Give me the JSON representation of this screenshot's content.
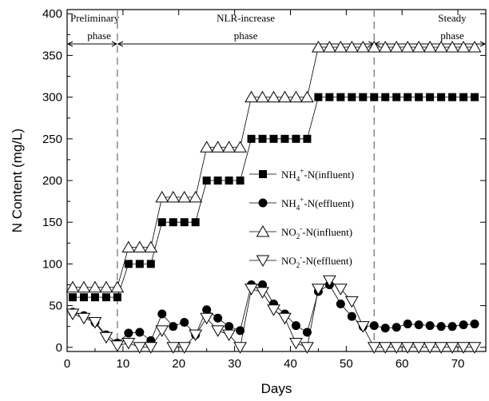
{
  "chart_data": {
    "type": "scatter",
    "title": "",
    "xlabel": "Days",
    "ylabel": "N Content (mg/L)",
    "xlim": [
      0,
      75
    ],
    "ylim": [
      -5,
      405
    ],
    "x_ticks": [
      0,
      10,
      20,
      30,
      40,
      50,
      60,
      70
    ],
    "y_ticks": [
      0,
      50,
      100,
      150,
      200,
      250,
      300,
      350,
      400
    ],
    "x_tick_labels": [
      "0",
      "10",
      "20",
      "30",
      "40",
      "50",
      "60",
      "70"
    ],
    "y_tick_labels": [
      "0",
      "50",
      "100",
      "150",
      "200",
      "250",
      "300",
      "350",
      "400"
    ],
    "phase_dividers_x": [
      9,
      55
    ],
    "phases": [
      {
        "line1": "Preliminary",
        "line2": "phase",
        "x_start": 0,
        "x_end": 9
      },
      {
        "line1": "NLR-increase",
        "line2": "phase",
        "x_start": 9,
        "x_end": 55
      },
      {
        "line1": "Steady",
        "line2": "phase",
        "x_start": 55,
        "x_end": 75
      }
    ],
    "legend_position": "center-right",
    "series": [
      {
        "name_main": "NH",
        "name_sub": "4",
        "name_sup": "+",
        "name_rest": "-N(influent)",
        "marker": "square",
        "x": [
          1,
          3,
          5,
          7,
          9,
          11,
          13,
          15,
          17,
          19,
          21,
          23,
          25,
          27,
          29,
          31,
          33,
          35,
          37,
          39,
          41,
          43,
          45,
          47,
          49,
          51,
          53,
          55,
          57,
          59,
          61,
          63,
          65,
          67,
          69,
          71,
          73
        ],
        "y": [
          60,
          60,
          60,
          60,
          60,
          100,
          100,
          100,
          150,
          150,
          150,
          150,
          200,
          200,
          200,
          200,
          250,
          250,
          250,
          250,
          250,
          250,
          300,
          300,
          300,
          300,
          300,
          300,
          300,
          300,
          300,
          300,
          300,
          300,
          300,
          300,
          300
        ]
      },
      {
        "name_main": "NH",
        "name_sub": "4",
        "name_sup": "+",
        "name_rest": "-N(effluent)",
        "marker": "circle",
        "x": [
          1,
          3,
          5,
          7,
          9,
          11,
          13,
          15,
          17,
          19,
          21,
          23,
          25,
          27,
          29,
          31,
          33,
          35,
          37,
          39,
          41,
          43,
          45,
          47,
          49,
          51,
          53,
          55,
          57,
          59,
          61,
          63,
          65,
          67,
          69,
          71,
          73
        ],
        "y": [
          42,
          38,
          30,
          15,
          5,
          17,
          18,
          8,
          40,
          25,
          30,
          15,
          45,
          35,
          25,
          20,
          75,
          75,
          52,
          40,
          26,
          18,
          67,
          75,
          52,
          37,
          25,
          26,
          23,
          24,
          28,
          27,
          26,
          25,
          25,
          27,
          28
        ]
      },
      {
        "name_main": "NO",
        "name_sub": "2",
        "name_sup": "-",
        "name_rest": "-N(influent)",
        "marker": "triangle-up",
        "x": [
          1,
          3,
          5,
          7,
          9,
          11,
          13,
          15,
          17,
          19,
          21,
          23,
          25,
          27,
          29,
          31,
          33,
          35,
          37,
          39,
          41,
          43,
          45,
          47,
          49,
          51,
          53,
          55,
          57,
          59,
          61,
          63,
          65,
          67,
          69,
          71,
          73
        ],
        "y": [
          72,
          72,
          72,
          72,
          72,
          120,
          120,
          120,
          180,
          180,
          180,
          180,
          240,
          240,
          240,
          240,
          300,
          300,
          300,
          300,
          300,
          300,
          360,
          360,
          360,
          360,
          360,
          360,
          360,
          360,
          360,
          360,
          360,
          360,
          360,
          360,
          360
        ]
      },
      {
        "name_main": "NO",
        "name_sub": "2",
        "name_sup": "-",
        "name_rest": "-N(effluent)",
        "marker": "triangle-down",
        "x": [
          1,
          3,
          5,
          7,
          9,
          11,
          13,
          15,
          17,
          19,
          21,
          23,
          25,
          27,
          29,
          31,
          33,
          35,
          37,
          39,
          41,
          43,
          45,
          47,
          49,
          51,
          53,
          55,
          57,
          59,
          61,
          63,
          65,
          67,
          69,
          71,
          73
        ],
        "y": [
          40,
          35,
          30,
          12,
          2,
          5,
          0,
          0,
          20,
          0,
          0,
          15,
          35,
          20,
          15,
          0,
          70,
          66,
          45,
          35,
          5,
          0,
          70,
          80,
          70,
          55,
          25,
          0,
          0,
          0,
          0,
          0,
          0,
          0,
          0,
          0,
          0
        ]
      }
    ]
  }
}
